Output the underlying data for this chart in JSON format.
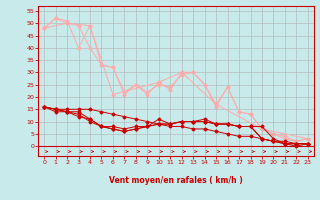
{
  "background_color": "#c8eaea",
  "grid_color": "#b0b0b0",
  "xlabel": "Vent moyen/en rafales ( km/h )",
  "xlabel_color": "#cc0000",
  "tick_color": "#cc0000",
  "xlim": [
    -0.5,
    23.5
  ],
  "ylim": [
    -4,
    57
  ],
  "yticks": [
    0,
    5,
    10,
    15,
    20,
    25,
    30,
    35,
    40,
    45,
    50,
    55
  ],
  "xticks": [
    0,
    1,
    2,
    3,
    4,
    5,
    6,
    7,
    8,
    9,
    10,
    11,
    12,
    13,
    14,
    15,
    16,
    17,
    18,
    19,
    20,
    21,
    22,
    23
  ],
  "lines_light": [
    [
      0,
      48,
      1,
      52,
      2,
      51,
      3,
      40,
      4,
      49,
      5,
      33,
      6,
      32,
      7,
      21,
      8,
      25,
      9,
      21,
      10,
      26,
      11,
      23,
      12,
      30,
      13,
      30,
      14,
      25,
      15,
      16,
      16,
      24,
      17,
      14,
      18,
      13,
      19,
      7,
      20,
      5,
      21,
      3,
      22,
      2,
      23,
      3
    ],
    [
      0,
      48,
      1,
      52,
      2,
      50,
      3,
      49,
      4,
      40,
      5,
      33,
      6,
      32,
      7,
      22,
      8,
      25,
      9,
      22,
      10,
      25,
      11,
      24,
      12,
      29,
      13,
      30,
      14,
      25,
      15,
      17,
      16,
      24,
      17,
      14,
      18,
      13,
      19,
      7,
      20,
      5,
      21,
      4,
      22,
      2,
      23,
      3
    ],
    [
      0,
      48,
      2,
      50,
      4,
      49,
      6,
      21,
      10,
      26,
      12,
      30,
      15,
      17,
      19,
      7,
      23,
      3
    ]
  ],
  "lines_dark": [
    [
      0,
      16,
      1,
      15,
      2,
      14,
      3,
      14,
      4,
      11,
      5,
      8,
      6,
      7,
      7,
      6,
      8,
      7,
      9,
      8,
      10,
      9,
      11,
      9,
      12,
      10,
      13,
      10,
      14,
      10,
      15,
      9,
      16,
      9,
      17,
      8,
      18,
      8,
      19,
      3,
      20,
      2,
      21,
      1,
      22,
      1,
      23,
      1
    ],
    [
      0,
      16,
      1,
      14,
      2,
      14,
      3,
      13,
      4,
      10,
      5,
      8,
      6,
      7,
      7,
      6,
      8,
      7,
      9,
      8,
      10,
      9,
      11,
      9,
      12,
      10,
      13,
      10,
      14,
      10,
      15,
      9,
      16,
      9,
      17,
      8,
      18,
      8,
      19,
      3,
      20,
      2,
      21,
      1,
      22,
      0,
      23,
      1
    ],
    [
      0,
      16,
      1,
      15,
      2,
      14,
      3,
      12,
      4,
      11,
      5,
      8,
      6,
      8,
      7,
      7,
      8,
      8,
      9,
      8,
      10,
      11,
      11,
      9,
      12,
      10,
      13,
      10,
      14,
      11,
      15,
      9,
      16,
      9,
      17,
      8,
      18,
      8,
      19,
      8,
      20,
      3,
      21,
      1,
      22,
      1,
      23,
      1
    ],
    [
      0,
      16,
      1,
      15,
      2,
      15,
      3,
      15,
      4,
      15,
      5,
      14,
      6,
      13,
      7,
      12,
      8,
      11,
      9,
      10,
      10,
      9,
      11,
      8,
      12,
      8,
      13,
      7,
      14,
      7,
      15,
      6,
      16,
      5,
      17,
      4,
      18,
      4,
      19,
      3,
      20,
      2,
      21,
      2,
      22,
      1,
      23,
      1
    ]
  ],
  "light_color": "#ffaaaa",
  "dark_color": "#cc0000",
  "axis_line_color": "#cc0000"
}
